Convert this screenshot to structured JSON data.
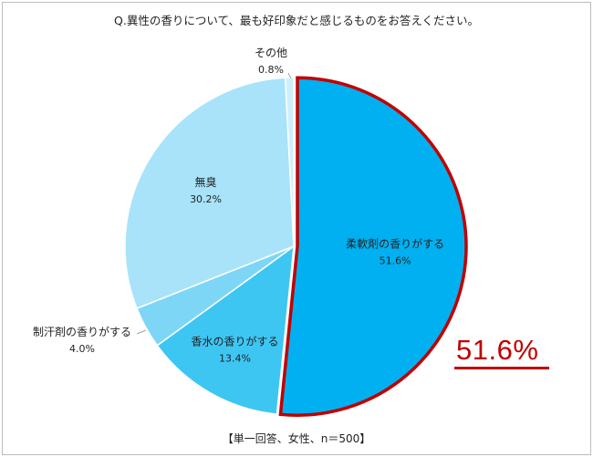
{
  "title": "Q.異性の香りについて、最も好印象だと感じるものをお答えください。",
  "footnote": "【単一回答、女性、n＝500】",
  "highlight": {
    "value_label": "51.6%",
    "color": "#c00000"
  },
  "chart_data": {
    "type": "pie",
    "title": "Q.異性の香りについて、最も好印象だと感じるものをお答えください。",
    "legend": "none",
    "slices": [
      {
        "name": "柔軟剤の香りがする",
        "value": 51.6,
        "label": "51.6%",
        "color": "#00b0f0",
        "highlighted": true
      },
      {
        "name": "香水の香りがする",
        "value": 13.4,
        "label": "13.4%",
        "color": "#3ec6f3"
      },
      {
        "name": "制汗剤の香りがする",
        "value": 4.0,
        "label": "4.0%",
        "color": "#7ed6f7"
      },
      {
        "name": "無臭",
        "value": 30.2,
        "label": "30.2%",
        "color": "#a8e3f9"
      },
      {
        "name": "その他",
        "value": 0.8,
        "label": "0.8%",
        "color": "#cdeffc"
      }
    ]
  }
}
